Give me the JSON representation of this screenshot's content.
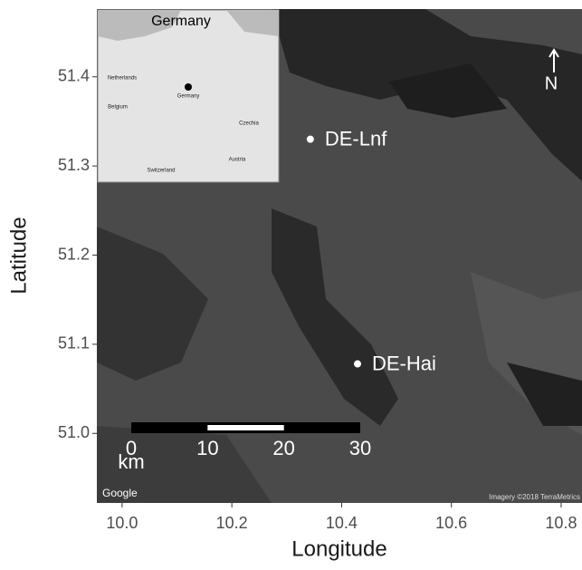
{
  "chart_data": {
    "type": "scatter",
    "xlabel": "Longitude",
    "ylabel": "Latitude",
    "xlim": [
      9.954,
      10.838
    ],
    "ylim": [
      50.922,
      51.476
    ],
    "xticks": [
      {
        "value": 10.0,
        "label": "10.0"
      },
      10.2,
      10.4,
      10.6,
      10.8
    ],
    "yticks": [
      {
        "value": 51.0,
        "label": "51.0"
      },
      51.1,
      51.2,
      51.3,
      51.4
    ],
    "points": {
      "x": [
        10.343,
        10.429
      ],
      "y": [
        51.33,
        51.078
      ],
      "labels": [
        "DE-Lnf",
        "DE-Hai"
      ],
      "color": "#ffffff"
    },
    "scale_bar": {
      "ticks": [
        0,
        10,
        20,
        30
      ],
      "unit": "km"
    },
    "north": "N",
    "attribution_left": "Google",
    "attribution_right": "Imagery ©2018 TerraMetrics",
    "inset": {
      "title": "Germany",
      "labels": [
        "Netherlands",
        "Belgium",
        "Germany",
        "Czechia",
        "Austria",
        "Switzerland"
      ]
    }
  }
}
